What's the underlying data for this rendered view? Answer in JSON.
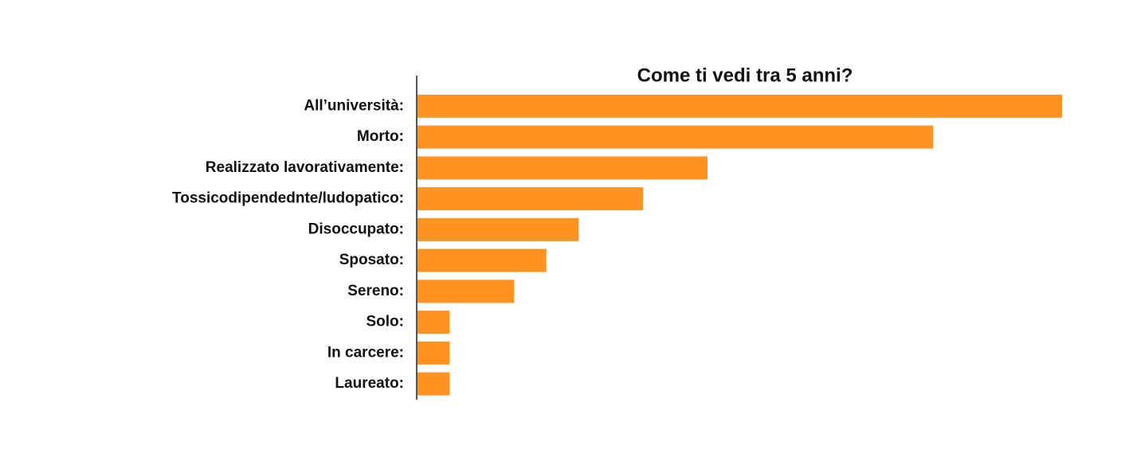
{
  "chart_data": {
    "type": "bar",
    "orientation": "horizontal",
    "title": "Come ti vedi tra 5 anni?",
    "categories": [
      "All’università:",
      "Morto:",
      "Realizzato lavorativamente:",
      "Tossicodipendednte/ludopatico:",
      "Disoccupato:",
      "Sposato:",
      "Sereno:",
      "Solo:",
      "In carcere:",
      "Laureato:"
    ],
    "values": [
      20,
      16,
      9,
      7,
      5,
      4,
      3,
      1,
      1,
      1
    ],
    "color": "#ff9422",
    "xlim": [
      0,
      20
    ]
  }
}
